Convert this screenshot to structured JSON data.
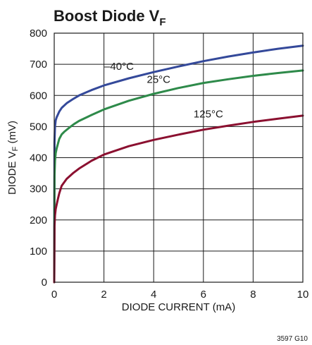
{
  "chart_data": {
    "type": "line",
    "title": "Boost Diode V",
    "title_subscript": "F",
    "xlabel": "DIODE CURRENT (mA)",
    "ylabel_prefix": "DIODE V",
    "ylabel_subscript": "F",
    "ylabel_suffix": " (mV)",
    "xlim": [
      0,
      10
    ],
    "ylim": [
      0,
      800
    ],
    "x_ticks": [
      0,
      2,
      4,
      6,
      8,
      10
    ],
    "y_ticks": [
      0,
      100,
      200,
      300,
      400,
      500,
      600,
      700,
      800
    ],
    "x_tick_labels": [
      "0",
      "2",
      "4",
      "6",
      "8",
      "10"
    ],
    "y_tick_labels": [
      "0",
      "100",
      "200",
      "300",
      "400",
      "500",
      "600",
      "700",
      "800"
    ],
    "grid": true,
    "figure_code": "3597 G10",
    "series": [
      {
        "name": "–40°C",
        "color": "#34499a",
        "x": [
          0,
          0.01,
          0.03,
          0.06,
          0.1,
          0.2,
          0.3,
          0.5,
          0.75,
          1,
          1.5,
          2,
          3,
          4,
          5,
          6,
          7,
          8,
          9,
          10
        ],
        "y": [
          0,
          450,
          500,
          520,
          530,
          548,
          560,
          575,
          588,
          600,
          617,
          632,
          655,
          675,
          693,
          710,
          725,
          738,
          750,
          760
        ]
      },
      {
        "name": "25°C",
        "color": "#2e8a4a",
        "x": [
          0,
          0.01,
          0.03,
          0.06,
          0.1,
          0.15,
          0.2,
          0.3,
          0.4,
          0.6,
          0.8,
          1,
          1.5,
          2,
          3,
          4,
          5,
          6,
          7,
          8,
          9,
          10
        ],
        "y": [
          0,
          340,
          390,
          415,
          430,
          445,
          460,
          475,
          483,
          496,
          508,
          518,
          537,
          555,
          583,
          605,
          624,
          640,
          652,
          663,
          672,
          680
        ]
      },
      {
        "name": "125°C",
        "color": "#8b1030",
        "x": [
          0,
          0.01,
          0.03,
          0.06,
          0.1,
          0.15,
          0.2,
          0.3,
          0.5,
          0.75,
          1,
          1.5,
          2,
          3,
          4,
          5,
          6,
          7,
          8,
          9,
          10
        ],
        "y": [
          0,
          180,
          215,
          235,
          250,
          268,
          285,
          310,
          332,
          350,
          365,
          390,
          410,
          437,
          457,
          474,
          490,
          503,
          515,
          525,
          535
        ]
      }
    ]
  }
}
